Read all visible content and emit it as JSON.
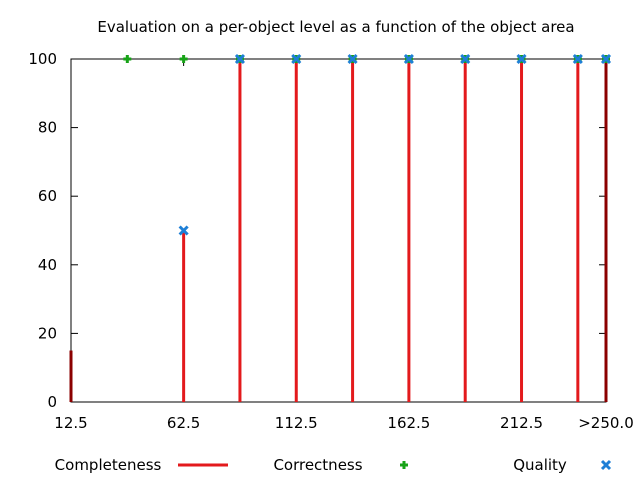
{
  "chart_data": {
    "type": "bar",
    "title": "Evaluation on a per-object level as a function of the object area",
    "xlabel": "",
    "ylabel": "",
    "xlim": [
      12.5,
      250
    ],
    "ylim": [
      0,
      100
    ],
    "x_ticks": [
      12.5,
      62.5,
      112.5,
      162.5,
      212.5,
      250
    ],
    "x_tick_labels": [
      "12.5",
      "62.5",
      "112.5",
      "162.5",
      "212.5",
      ">250.0"
    ],
    "y_ticks": [
      0,
      20,
      40,
      60,
      80,
      100
    ],
    "y_tick_labels": [
      "0",
      "20",
      "40",
      "60",
      "80",
      "100"
    ],
    "grid": false,
    "legend_position": "bottom",
    "series": [
      {
        "name": "Completeness",
        "style": "impulses",
        "color": "#e31a1c",
        "points": [
          {
            "x": 12.5,
            "y": 15
          },
          {
            "x": 37.5,
            "y": 0
          },
          {
            "x": 62.5,
            "y": 50
          },
          {
            "x": 87.5,
            "y": 100
          },
          {
            "x": 112.5,
            "y": 100
          },
          {
            "x": 137.5,
            "y": 100
          },
          {
            "x": 162.5,
            "y": 100
          },
          {
            "x": 187.5,
            "y": 100
          },
          {
            "x": 212.5,
            "y": 100
          },
          {
            "x": 237.5,
            "y": 100
          },
          {
            "x": 250,
            "y": 100
          }
        ]
      },
      {
        "name": "Correctness",
        "style": "plus",
        "color": "#17a317",
        "points": [
          {
            "x": 37.5,
            "y": 100
          },
          {
            "x": 62.5,
            "y": 100
          },
          {
            "x": 87.5,
            "y": 100
          },
          {
            "x": 112.5,
            "y": 100
          },
          {
            "x": 137.5,
            "y": 100
          },
          {
            "x": 162.5,
            "y": 100
          },
          {
            "x": 187.5,
            "y": 100
          },
          {
            "x": 212.5,
            "y": 100
          },
          {
            "x": 237.5,
            "y": 100
          },
          {
            "x": 250,
            "y": 100
          }
        ]
      },
      {
        "name": "Quality",
        "style": "cross",
        "color": "#1e7fd6",
        "points": [
          {
            "x": 62.5,
            "y": 50
          },
          {
            "x": 87.5,
            "y": 100
          },
          {
            "x": 112.5,
            "y": 100
          },
          {
            "x": 137.5,
            "y": 100
          },
          {
            "x": 162.5,
            "y": 100
          },
          {
            "x": 187.5,
            "y": 100
          },
          {
            "x": 212.5,
            "y": 100
          },
          {
            "x": 237.5,
            "y": 100
          },
          {
            "x": 250,
            "y": 100
          }
        ]
      }
    ]
  }
}
